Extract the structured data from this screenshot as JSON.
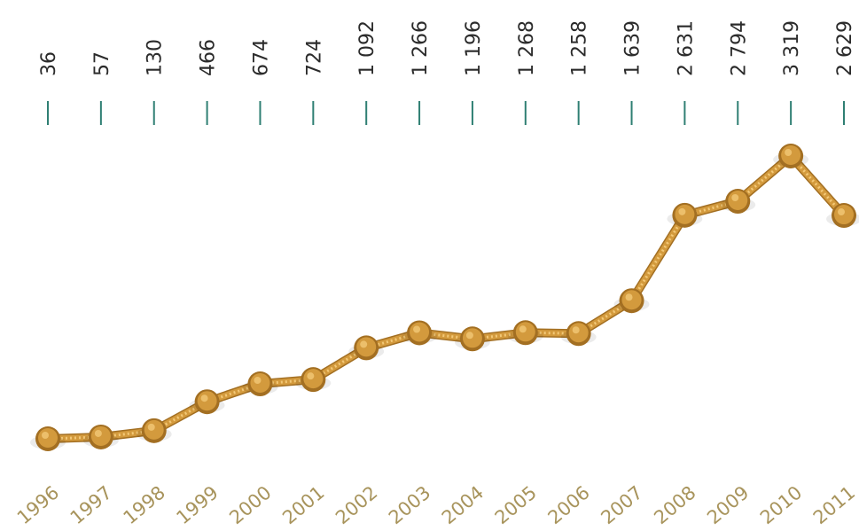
{
  "chart_data": {
    "type": "line",
    "categories": [
      "1996",
      "1997",
      "1998",
      "1999",
      "2000",
      "2001",
      "2002",
      "2003",
      "2004",
      "2005",
      "2006",
      "2007",
      "2008",
      "2009",
      "2010",
      "2011"
    ],
    "values": [
      36,
      57,
      130,
      466,
      674,
      724,
      1092,
      1266,
      1196,
      1268,
      1258,
      1639,
      2631,
      2794,
      3319,
      2629
    ],
    "value_labels": [
      "36",
      "57",
      "130",
      "466",
      "674",
      "724",
      "1 092",
      "1 266",
      "1 196",
      "1 268",
      "1 258",
      "1 639",
      "2 631",
      "2 794",
      "3 319",
      "2 629"
    ],
    "title": "",
    "xlabel": "",
    "ylabel": "",
    "ylim": [
      0,
      3500
    ],
    "grid": false,
    "colors": {
      "line": "#d39a3d",
      "line_shadow": "#a36f22",
      "tick": "#2f7f73",
      "year_text": "#a8945c",
      "value_text": "#2b2b2b"
    }
  }
}
